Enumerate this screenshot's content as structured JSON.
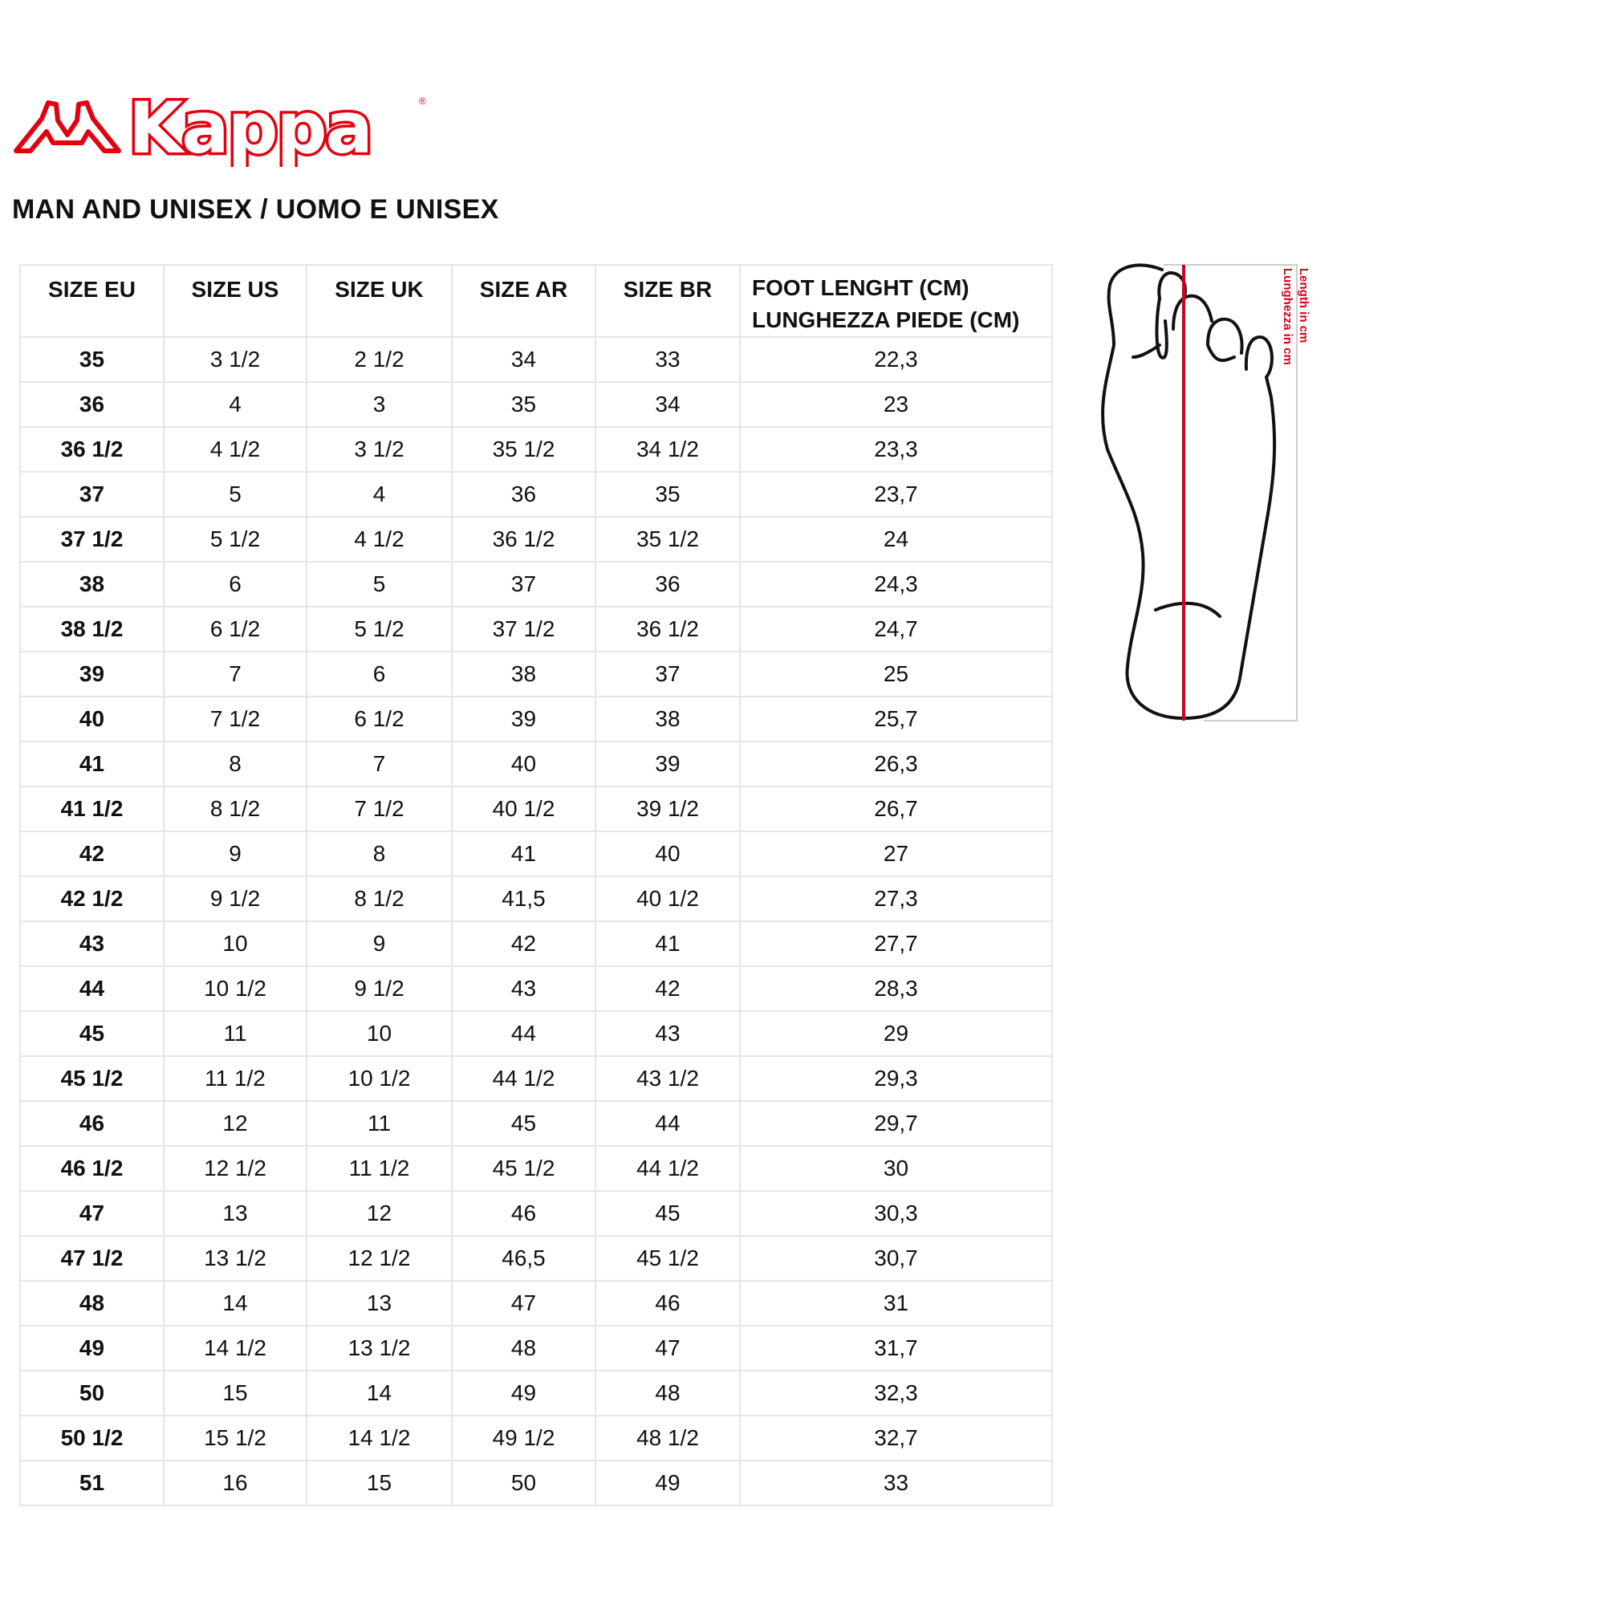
{
  "brand": {
    "logo_text": "Kappa",
    "registered_mark": "®",
    "color": "#e3000f"
  },
  "title": "MAN AND UNISEX / UOMO E UNISEX",
  "table": {
    "headers": [
      "SIZE EU",
      "SIZE US",
      "SIZE UK",
      "SIZE AR",
      "SIZE BR",
      "FOOT LENGHT (CM)",
      "LUNGHEZZA PIEDE (CM)"
    ],
    "rows": [
      [
        "35",
        "3 1/2",
        "2 1/2",
        "34",
        "33",
        "22,3"
      ],
      [
        "36",
        "4",
        "3",
        "35",
        "34",
        "23"
      ],
      [
        "36 1/2",
        "4 1/2",
        "3 1/2",
        "35 1/2",
        "34 1/2",
        "23,3"
      ],
      [
        "37",
        "5",
        "4",
        "36",
        "35",
        "23,7"
      ],
      [
        "37 1/2",
        "5 1/2",
        "4 1/2",
        "36 1/2",
        "35 1/2",
        "24"
      ],
      [
        "38",
        "6",
        "5",
        "37",
        "36",
        "24,3"
      ],
      [
        "38 1/2",
        "6 1/2",
        "5 1/2",
        "37 1/2",
        "36 1/2",
        "24,7"
      ],
      [
        "39",
        "7",
        "6",
        "38",
        "37",
        "25"
      ],
      [
        "40",
        "7 1/2",
        "6 1/2",
        "39",
        "38",
        "25,7"
      ],
      [
        "41",
        "8",
        "7",
        "40",
        "39",
        "26,3"
      ],
      [
        "41 1/2",
        "8 1/2",
        "7 1/2",
        "40 1/2",
        "39 1/2",
        "26,7"
      ],
      [
        "42",
        "9",
        "8",
        "41",
        "40",
        "27"
      ],
      [
        "42 1/2",
        "9 1/2",
        "8 1/2",
        "41,5",
        "40 1/2",
        "27,3"
      ],
      [
        "43",
        "10",
        "9",
        "42",
        "41",
        "27,7"
      ],
      [
        "44",
        "10 1/2",
        "9 1/2",
        "43",
        "42",
        "28,3"
      ],
      [
        "45",
        "11",
        "10",
        "44",
        "43",
        "29"
      ],
      [
        "45 1/2",
        "11 1/2",
        "10 1/2",
        "44 1/2",
        "43 1/2",
        "29,3"
      ],
      [
        "46",
        "12",
        "11",
        "45",
        "44",
        "29,7"
      ],
      [
        "46 1/2",
        "12 1/2",
        "11 1/2",
        "45 1/2",
        "44 1/2",
        "30"
      ],
      [
        "47",
        "13",
        "12",
        "46",
        "45",
        "30,3"
      ],
      [
        "47 1/2",
        "13 1/2",
        "12 1/2",
        "46,5",
        "45 1/2",
        "30,7"
      ],
      [
        "48",
        "14",
        "13",
        "47",
        "46",
        "31"
      ],
      [
        "49",
        "14 1/2",
        "13 1/2",
        "48",
        "47",
        "31,7"
      ],
      [
        "50",
        "15",
        "14",
        "49",
        "48",
        "32,3"
      ],
      [
        "50 1/2",
        "15 1/2",
        "14 1/2",
        "49 1/2",
        "48 1/2",
        "32,7"
      ],
      [
        "51",
        "16",
        "15",
        "50",
        "49",
        "33"
      ]
    ]
  },
  "foot_diagram": {
    "label_en": "Length in cm",
    "label_it": "Lunghezza in cm",
    "line_color": "#d0021b"
  }
}
